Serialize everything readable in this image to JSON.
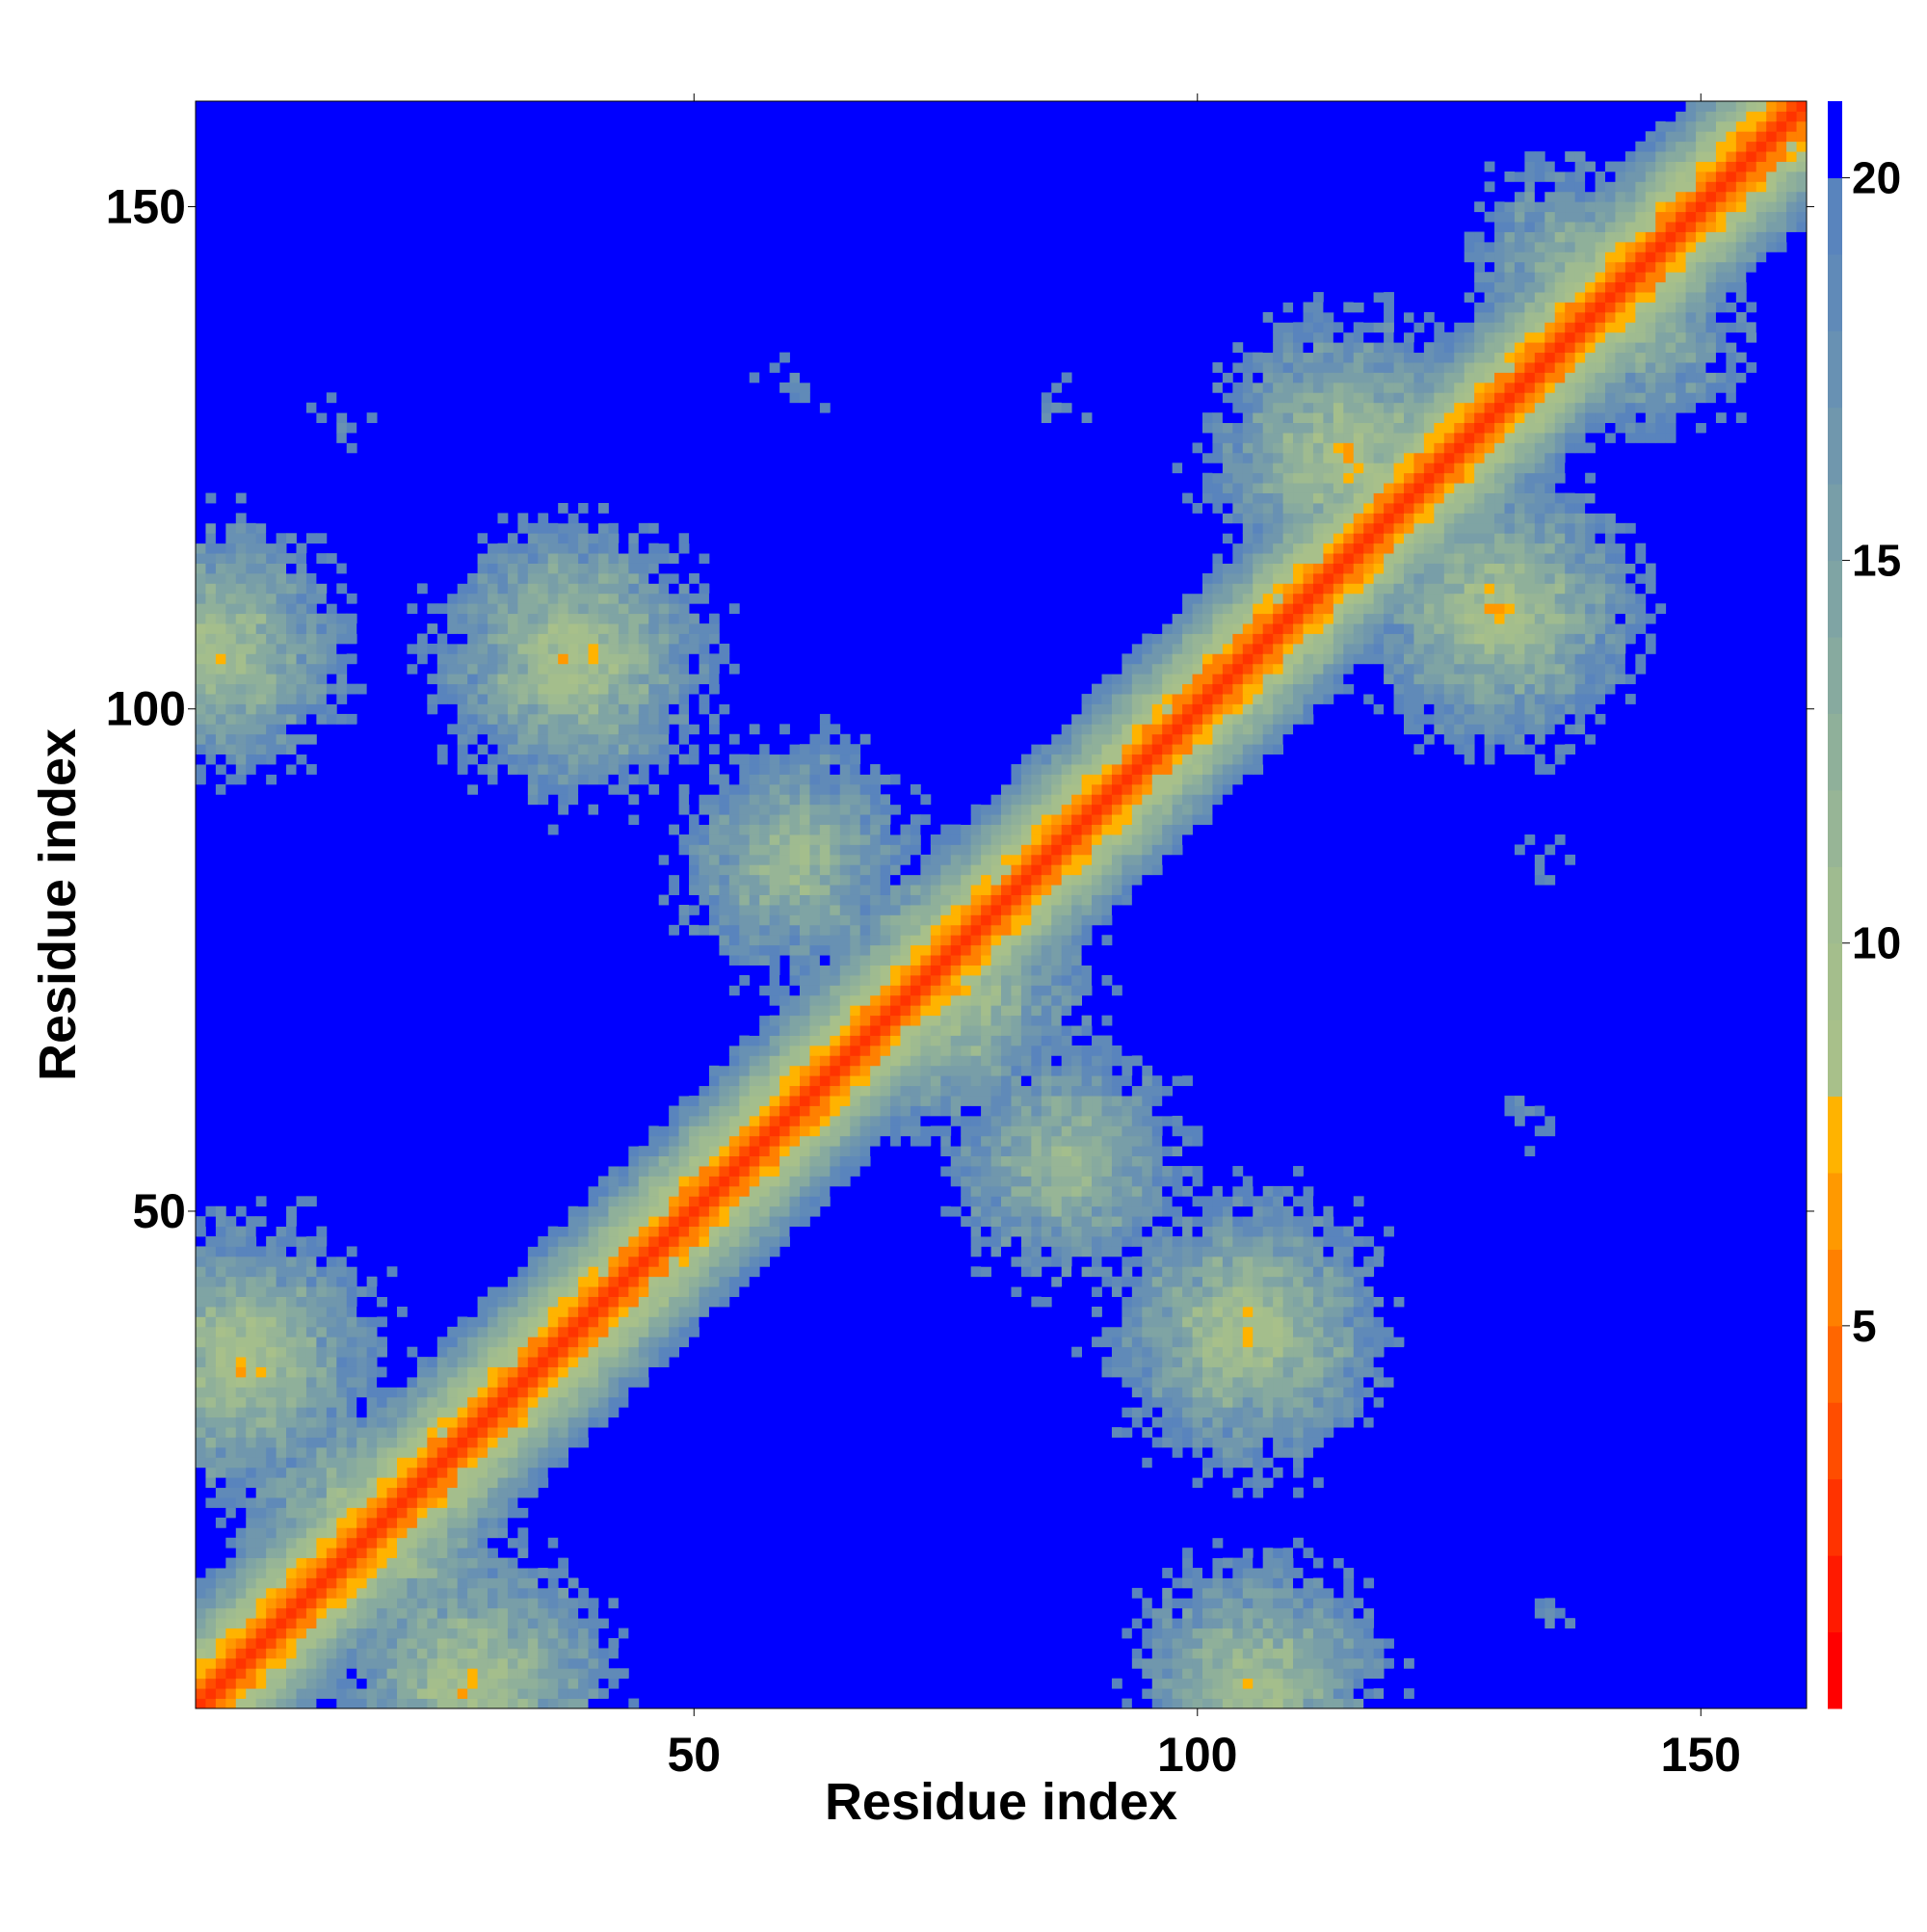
{
  "chart_data": {
    "type": "heatmap",
    "title": "",
    "xlabel": "Residue index",
    "ylabel": "Residue index",
    "n_residues": 160,
    "x_range": [
      1,
      160
    ],
    "y_range": [
      1,
      160
    ],
    "x_ticks": [
      50,
      100,
      150
    ],
    "y_ticks": [
      50,
      100,
      150
    ],
    "x_tick_labels": [
      "50",
      "100",
      "150"
    ],
    "y_tick_labels": [
      "50",
      "100",
      "150"
    ],
    "colorbar": {
      "range": [
        0,
        21
      ],
      "ticks": [
        5,
        10,
        15,
        20
      ],
      "tick_labels": [
        "5",
        "10",
        "15",
        "20"
      ],
      "levels": [
        {
          "max": 1,
          "color": "#ff0000"
        },
        {
          "max": 2,
          "color": "#ff1a00"
        },
        {
          "max": 3,
          "color": "#ff3300"
        },
        {
          "max": 4,
          "color": "#ff4d00"
        },
        {
          "max": 5,
          "color": "#ff6600"
        },
        {
          "max": 6,
          "color": "#ff8000"
        },
        {
          "max": 7,
          "color": "#ff9900"
        },
        {
          "max": 8,
          "color": "#ffb300"
        },
        {
          "max": 9,
          "color": "#a8c08a"
        },
        {
          "max": 10,
          "color": "#a4be8c"
        },
        {
          "max": 11,
          "color": "#9fbb90"
        },
        {
          "max": 12,
          "color": "#97b596"
        },
        {
          "max": 13,
          "color": "#8fb09a"
        },
        {
          "max": 14,
          "color": "#87aa9f"
        },
        {
          "max": 15,
          "color": "#7fa4a4"
        },
        {
          "max": 16,
          "color": "#789ea8"
        },
        {
          "max": 17,
          "color": "#7097ad"
        },
        {
          "max": 18,
          "color": "#6891b3"
        },
        {
          "max": 19,
          "color": "#608ab8"
        },
        {
          "max": 20,
          "color": "#5984bd"
        },
        {
          "max": 21,
          "color": "#0000ff"
        }
      ]
    },
    "cutoff": 21,
    "background_color": "#0000ff",
    "secondary_contacts": [
      {
        "center": [
          5,
          35
        ],
        "min": 6
      },
      {
        "center": [
          18,
          18
        ],
        "min": 6
      },
      {
        "center": [
          28,
          3
        ],
        "min": 6
      },
      {
        "center": [
          60,
          85
        ],
        "min": 8
      },
      {
        "center": [
          87,
          55
        ],
        "min": 8
      },
      {
        "center": [
          75,
          72
        ],
        "min": 6
      },
      {
        "center": [
          115,
          125
        ],
        "min": 6
      },
      {
        "center": [
          130,
          110
        ],
        "min": 6
      },
      {
        "center": [
          137,
          145
        ],
        "min": 10
      },
      {
        "center": [
          145,
          137
        ],
        "min": 10
      },
      {
        "center": [
          15,
          128
        ],
        "min": 17
      },
      {
        "center": [
          60,
          132
        ],
        "min": 17
      },
      {
        "center": [
          86,
          130
        ],
        "min": 17
      },
      {
        "center": [
          132,
          60
        ],
        "min": 17
      },
      {
        "center": [
          135,
          85
        ],
        "min": 17
      },
      {
        "center": [
          135,
          10
        ],
        "min": 17
      },
      {
        "center": [
          38,
          105
        ],
        "min": 6
      },
      {
        "center": [
          105,
          38
        ],
        "min": 6
      },
      {
        "center": [
          3,
          106
        ],
        "min": 7
      },
      {
        "center": [
          106,
          3
        ],
        "min": 7
      }
    ]
  }
}
